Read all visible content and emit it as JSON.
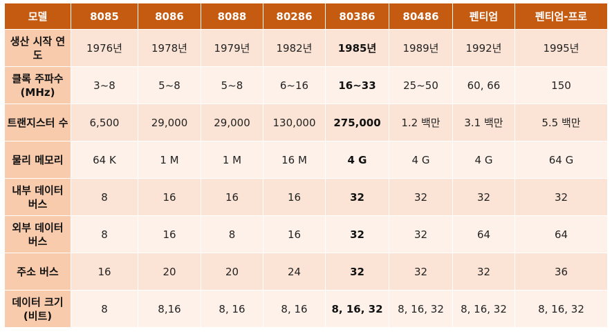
{
  "table": {
    "header": [
      "모델",
      "8085",
      "8086",
      "8088",
      "80286",
      "80386",
      "80486",
      "펜티엄",
      "펜티엄-프로"
    ],
    "rows": [
      {
        "label": "생산 시작 연도",
        "cells": [
          "1976년",
          "1978년",
          "1979년",
          "1982년",
          "1985년",
          "1989년",
          "1992년",
          "1995년"
        ]
      },
      {
        "label": "클록 주파수(MHz)",
        "cells": [
          "3~8",
          "5~8",
          "5~8",
          "6~16",
          "16~33",
          "25~50",
          "60, 66",
          "150"
        ]
      },
      {
        "label": "트랜지스터 수",
        "cells": [
          "6,500",
          "29,000",
          "29,000",
          "130,000",
          "275,000",
          "1.2 백만",
          "3.1 백만",
          "5.5 백만"
        ]
      },
      {
        "label": "물리 메모리",
        "cells": [
          "64 K",
          "1 M",
          "1 M",
          "16 M",
          "4 G",
          "4 G",
          "4 G",
          "64 G"
        ]
      },
      {
        "label": "내부 데이터 버스",
        "cells": [
          "8",
          "16",
          "16",
          "16",
          "32",
          "32",
          "32",
          "32"
        ]
      },
      {
        "label": "외부 데이터 버스",
        "cells": [
          "8",
          "16",
          "8",
          "16",
          "32",
          "32",
          "64",
          "64"
        ]
      },
      {
        "label": "주소 버스",
        "cells": [
          "16",
          "20",
          "20",
          "24",
          "32",
          "32",
          "32",
          "36"
        ]
      },
      {
        "label": "데이터 크기(비트)",
        "cells": [
          "8",
          "8,16",
          "8, 16",
          "8, 16",
          "8, 16, 32",
          "8, 16, 32",
          "8, 16, 32",
          "8, 16, 32"
        ]
      }
    ]
  },
  "colors": {
    "header": "#c55a11",
    "label_col": "#f8cbad",
    "row_a": "#fbe4d5",
    "row_b": "#fdf1e9"
  }
}
